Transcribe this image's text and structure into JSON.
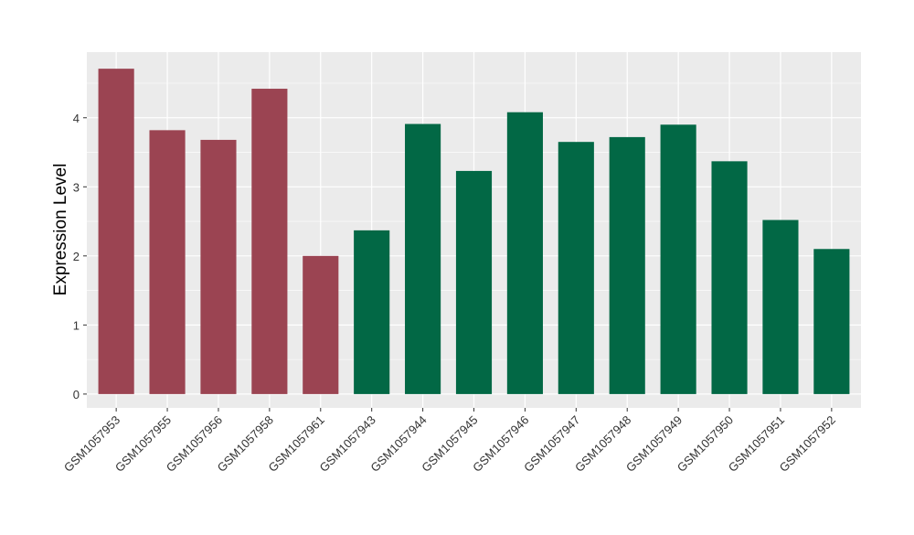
{
  "chart_data": {
    "type": "bar",
    "title": "",
    "xlabel": "",
    "ylabel": "Expression Level",
    "ylim": [
      -0.2,
      4.95
    ],
    "yticks": [
      0,
      1,
      2,
      3,
      4
    ],
    "grid": true,
    "legend": "none",
    "categories": [
      "GSM1057953",
      "GSM1057955",
      "GSM1057956",
      "GSM1057958",
      "GSM1057961",
      "GSM1057943",
      "GSM1057944",
      "GSM1057945",
      "GSM1057946",
      "GSM1057947",
      "GSM1057948",
      "GSM1057949",
      "GSM1057950",
      "GSM1057951",
      "GSM1057952"
    ],
    "values": [
      4.71,
      3.82,
      3.68,
      4.42,
      2.0,
      2.37,
      3.91,
      3.23,
      4.08,
      3.65,
      3.72,
      3.9,
      3.37,
      2.52,
      2.1
    ],
    "bar_colors": [
      "#9b4452",
      "#9b4452",
      "#9b4452",
      "#9b4452",
      "#9b4452",
      "#026845",
      "#026845",
      "#026845",
      "#026845",
      "#026845",
      "#026845",
      "#026845",
      "#026845",
      "#026845",
      "#026845"
    ],
    "panel_background": "#ebebeb",
    "grid_color": "#ffffff"
  }
}
